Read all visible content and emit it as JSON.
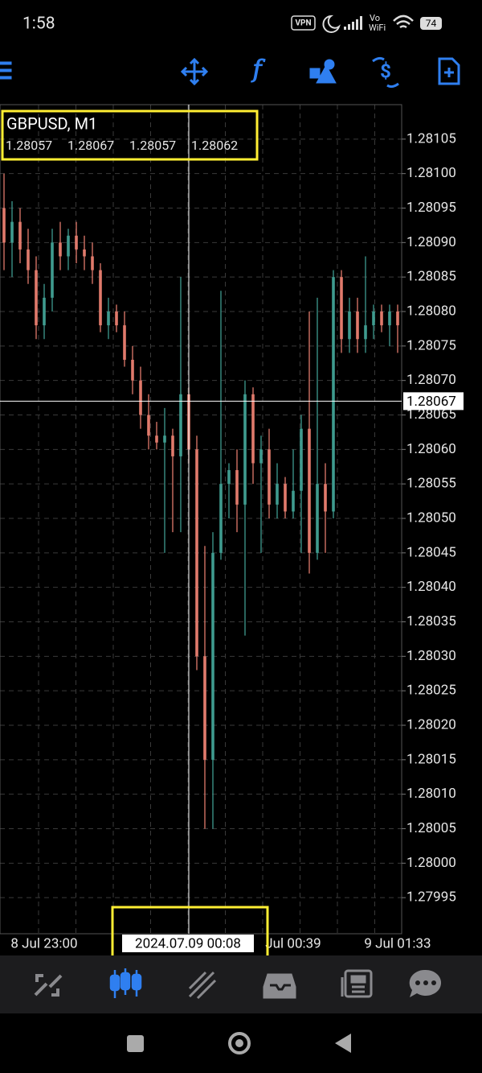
{
  "status_bar": {
    "time": "1:58",
    "vpn": "VPN",
    "volte": "Vo",
    "wifi": "WiFi",
    "battery": "74"
  },
  "info": {
    "symbol": "GBPUSD, M1",
    "ohlc": [
      1.28057,
      1.28067,
      1.28057,
      1.28062
    ]
  },
  "chart_data": {
    "type": "candlestick",
    "categories": [
      null,
      null,
      null,
      null,
      null,
      "8 Jul 23:00",
      null,
      null,
      null,
      null,
      null,
      null,
      null,
      null,
      null,
      null,
      null,
      null,
      null,
      null,
      null,
      null,
      null,
      null,
      null,
      null,
      null,
      null,
      null,
      null,
      null,
      null,
      null,
      null,
      null,
      null,
      "Jul 00:39",
      null,
      null,
      null,
      null,
      null,
      null,
      null,
      null,
      null,
      null,
      null,
      null,
      "9 Jul 01:33"
    ],
    "open": [
      1.28095,
      1.2809,
      1.28093,
      1.28089,
      1.28086,
      1.28078,
      1.28082,
      1.2809,
      1.28088,
      1.28091,
      1.28089,
      1.28088,
      1.28086,
      1.28078,
      1.2808,
      1.28078,
      1.28073,
      1.2807,
      1.28065,
      1.28062,
      1.28061,
      1.28062,
      1.28059,
      1.28068,
      1.2806,
      1.2803,
      1.28015,
      1.28045,
      1.28055,
      1.28057,
      1.28052,
      1.28068,
      1.28058,
      1.2806,
      1.28052,
      1.28055,
      1.28051,
      1.28054,
      1.28063,
      1.28045,
      1.28055,
      1.28051,
      1.28085,
      1.28076,
      1.2808,
      1.28076,
      1.28078,
      1.2808,
      1.28078,
      1.2808
    ],
    "high": [
      1.281,
      1.28096,
      1.28095,
      1.28092,
      1.28088,
      1.28084,
      1.28092,
      1.28093,
      1.28092,
      1.28093,
      1.28091,
      1.2809,
      1.28087,
      1.28082,
      1.28081,
      1.2808,
      1.28075,
      1.28072,
      1.28068,
      1.28064,
      1.28066,
      1.28063,
      1.28085,
      1.28069,
      1.28062,
      1.28046,
      1.28048,
      1.28083,
      1.28058,
      1.2806,
      1.2807,
      1.28069,
      1.28062,
      1.28063,
      1.28058,
      1.28056,
      1.2806,
      1.28065,
      1.2808,
      1.28082,
      1.28058,
      1.28086,
      1.28086,
      1.28082,
      1.28082,
      1.28088,
      1.28081,
      1.28081,
      1.28081,
      1.28081
    ],
    "low": [
      1.28086,
      1.28085,
      1.28087,
      1.28084,
      1.28076,
      1.28076,
      1.2808,
      1.28086,
      1.28086,
      1.28087,
      1.28086,
      1.28084,
      1.28077,
      1.28076,
      1.28077,
      1.28072,
      1.28068,
      1.28063,
      1.2806,
      1.2806,
      1.28045,
      1.28048,
      1.28048,
      1.28058,
      1.28028,
      1.28005,
      1.28005,
      1.28044,
      1.2805,
      1.28048,
      1.28033,
      1.28055,
      1.28045,
      1.2805,
      1.2805,
      1.2805,
      1.2805,
      1.28045,
      1.28042,
      1.28044,
      1.28045,
      1.2805,
      1.28074,
      1.28074,
      1.28074,
      1.28074,
      1.28076,
      1.28077,
      1.28075,
      1.28074
    ],
    "close": [
      1.2809,
      1.28093,
      1.28089,
      1.28086,
      1.28078,
      1.28082,
      1.2809,
      1.28088,
      1.28091,
      1.28089,
      1.28088,
      1.28086,
      1.28078,
      1.2808,
      1.28078,
      1.28073,
      1.2807,
      1.28065,
      1.28062,
      1.28061,
      1.28062,
      1.28059,
      1.28068,
      1.2806,
      1.2803,
      1.28015,
      1.28045,
      1.28055,
      1.28057,
      1.28052,
      1.28068,
      1.28058,
      1.2806,
      1.28052,
      1.28055,
      1.28051,
      1.28054,
      1.28063,
      1.28045,
      1.28055,
      1.28051,
      1.28085,
      1.28076,
      1.2808,
      1.28076,
      1.28078,
      1.2808,
      1.28078,
      1.2808,
      1.28078
    ],
    "up_color": "#3f9b8f",
    "down_color": "#e07a6c",
    "ylim": [
      1.2799,
      1.2811
    ],
    "yticks": [
      1.28105,
      {
        "value": 1.281,
        "label": "1.28100"
      },
      1.28095,
      {
        "value": 1.2809,
        "label": "1.28090"
      },
      1.28085,
      {
        "value": 1.2808,
        "label": "1.28080"
      },
      1.28075,
      {
        "value": 1.2807,
        "label": "1.28070"
      },
      1.28065,
      {
        "value": 1.2806,
        "label": "1.28060"
      },
      1.28055,
      {
        "value": 1.2805,
        "label": "1.28050"
      },
      1.28045,
      {
        "value": 1.2804,
        "label": "1.28040"
      },
      1.28035,
      {
        "value": 1.2803,
        "label": "1.28030"
      },
      1.28025,
      {
        "value": 1.2802,
        "label": "1.28020"
      },
      1.28015,
      {
        "value": 1.2801,
        "label": "1.28010"
      },
      1.28005,
      {
        "value": 1.28,
        "label": "1.28000"
      },
      1.27995
    ],
    "grid": true,
    "crosshair": {
      "time": "2024.07.09 00:08",
      "price": 1.28067
    }
  }
}
